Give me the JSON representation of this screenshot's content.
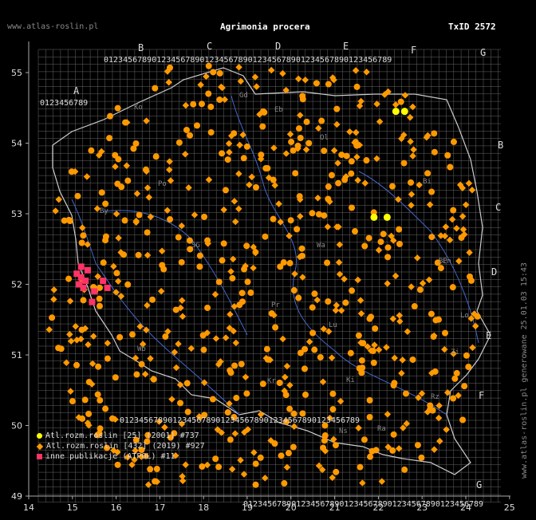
{
  "header": {
    "site": "www.atlas-roslin.pl",
    "species": "Agrimonia procera",
    "taxon": "TxID 2572"
  },
  "footer": {
    "generated": "www.atlas-roslin.pl generowane 25.01.03 15:43"
  },
  "axes": {
    "x_ticks": [
      "14",
      "15",
      "16",
      "17",
      "18",
      "19",
      "20",
      "21",
      "22",
      "23",
      "24",
      "25"
    ],
    "y_ticks": [
      "55",
      "54",
      "53",
      "52",
      "51",
      "50",
      "49"
    ]
  },
  "grid_letters": {
    "top": [
      "A",
      "B",
      "C",
      "D",
      "E",
      "F",
      "G"
    ],
    "right": [
      "B",
      "C",
      "D",
      "E",
      "F",
      "G"
    ]
  },
  "grid_digits": "0123456789",
  "region_labels": [
    "Ko",
    "Eb",
    "Ol",
    "Gd",
    "Bi",
    "Ln",
    "Po",
    "Wa",
    "Lo",
    "Zi",
    "Wb",
    "Lu",
    "Kr",
    "Ki",
    "Ns",
    "Ra",
    "BP",
    "Rz",
    "Pr",
    "SG",
    "By"
  ],
  "legend": {
    "items": [
      {
        "label": "Atl.rozm.roslin [25] (2001) #737",
        "color": "#ffff00",
        "shape": "circle"
      },
      {
        "label": "Atl.rozm.roslin [432] (2019) #927",
        "color": "#ff9900",
        "shape": "diamond"
      },
      {
        "label": "inne publikacje (ATPOL) #11",
        "color": "#ff3366",
        "shape": "square"
      }
    ]
  },
  "colors": {
    "background": "#000000",
    "grid": "#888888",
    "border": "#cccccc",
    "river": "#4466cc",
    "orange": "#ff9900",
    "yellow": "#ffff00",
    "pink": "#ff3366"
  },
  "map_data": {
    "type": "distribution-grid",
    "lon_range": [
      14,
      25
    ],
    "lat_range": [
      49,
      55.5
    ],
    "series": [
      {
        "name": "Atl.rozm.roslin [25] (2001) #737",
        "color": "#ffff00",
        "marker": "circle",
        "points": [
          [
            22.4,
            54.45
          ],
          [
            22.6,
            54.45
          ],
          [
            21.9,
            52.95
          ],
          [
            22.2,
            52.95
          ]
        ]
      },
      {
        "name": "Atl.rozm.roslin [432] (2019) #927",
        "color": "#ff9900",
        "marker": "diamond",
        "points": []
      },
      {
        "name": "inne publikacje (ATPOL) #11",
        "color": "#ff3366",
        "marker": "square",
        "points": [
          [
            15.1,
            52.15
          ],
          [
            15.2,
            52.1
          ],
          [
            15.3,
            52.05
          ],
          [
            15.15,
            52.0
          ],
          [
            15.25,
            51.95
          ],
          [
            15.5,
            51.9
          ],
          [
            15.45,
            51.75
          ],
          [
            15.7,
            52.05
          ],
          [
            15.8,
            51.95
          ],
          [
            15.2,
            52.25
          ],
          [
            15.35,
            52.2
          ]
        ]
      }
    ]
  }
}
